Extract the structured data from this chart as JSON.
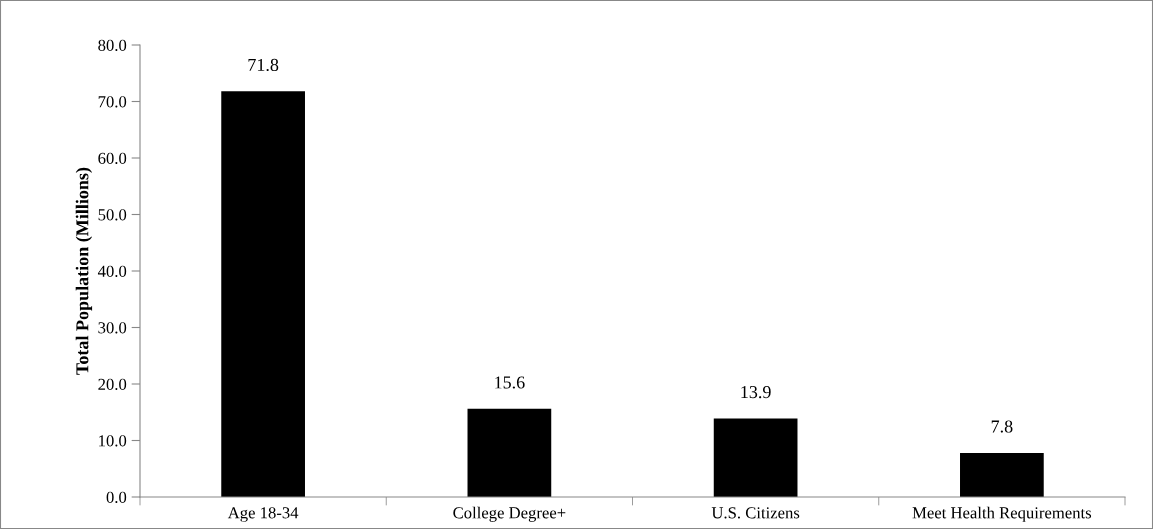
{
  "chart_data": {
    "type": "bar",
    "ylabel": "Total Population (Millions)",
    "categories": [
      "Age 18-34",
      "College Degree+",
      "U.S. Citizens",
      "Meet Health Requirements"
    ],
    "values": [
      71.8,
      15.6,
      13.9,
      7.8
    ],
    "color": "#000000",
    "data_labels": true,
    "grid": false,
    "legend": false,
    "ylim": [
      0,
      80
    ],
    "yticks": [
      {
        "value": 0,
        "label": "0.0"
      },
      {
        "value": 10,
        "label": "10.0"
      },
      {
        "value": 20,
        "label": "20.0"
      },
      {
        "value": 30,
        "label": "30.0"
      },
      {
        "value": 40,
        "label": "40.0"
      },
      {
        "value": 50,
        "label": "50.0"
      },
      {
        "value": 60,
        "label": "60.0"
      },
      {
        "value": 70,
        "label": "70.0"
      },
      {
        "value": 80,
        "label": "80.0"
      }
    ]
  }
}
